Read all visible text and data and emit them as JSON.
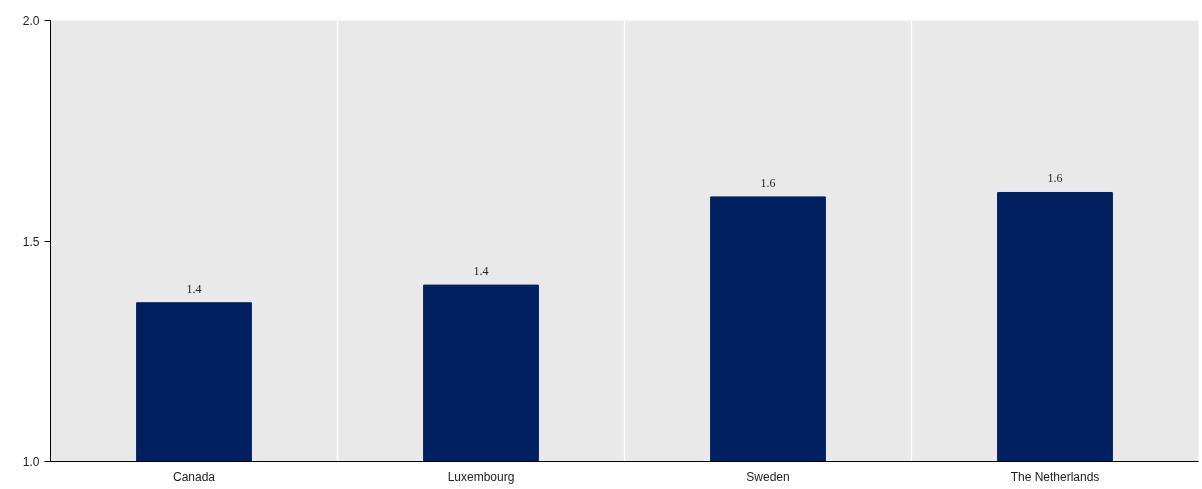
{
  "chart_data": {
    "type": "bar",
    "categories": [
      "Canada",
      "Luxembourg",
      "Sweden",
      "The Netherlands"
    ],
    "values": [
      1.36,
      1.4,
      1.6,
      1.61
    ],
    "value_labels": [
      "1.4",
      "1.4",
      "1.6",
      "1.6"
    ],
    "color": "#002060",
    "ylim": [
      1.0,
      2.0
    ],
    "yticks": [
      {
        "value": 1.0,
        "label": "1.0"
      },
      {
        "value": 1.5,
        "label": "1.5"
      },
      {
        "value": 2.0,
        "label": "2.0"
      }
    ],
    "grid": "x"
  }
}
